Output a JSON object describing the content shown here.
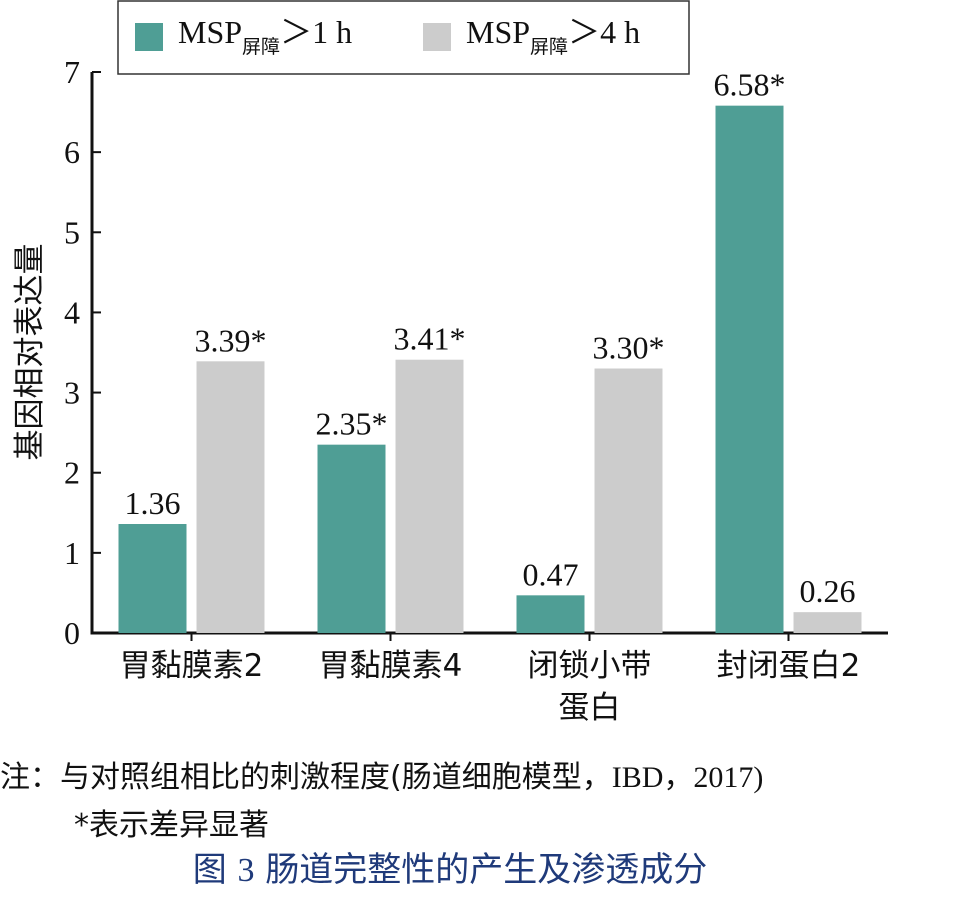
{
  "chart_data": {
    "type": "bar",
    "ylabel": "基因相对表达量",
    "ylim": [
      0,
      7
    ],
    "yticks": [
      0,
      1,
      2,
      3,
      4,
      5,
      6,
      7
    ],
    "categories": [
      {
        "lines": [
          "胃黏膜素2"
        ]
      },
      {
        "lines": [
          "胃黏膜素4"
        ]
      },
      {
        "lines": [
          "闭锁小带",
          "蛋白"
        ]
      },
      {
        "lines": [
          "封闭蛋白2"
        ]
      }
    ],
    "series": [
      {
        "name_main": "MSP",
        "name_sub": "屏障",
        "name_rest": "＞1 h",
        "color": "#4f9e95",
        "values": [
          1.36,
          2.35,
          0.47,
          6.58
        ],
        "labels": [
          "1.36",
          "2.35*",
          "0.47",
          "6.58*"
        ]
      },
      {
        "name_main": "MSP",
        "name_sub": "屏障",
        "name_rest": "＞4 h",
        "color": "#cccccc",
        "values": [
          3.39,
          3.41,
          3.3,
          0.26
        ],
        "labels": [
          "3.39*",
          "3.41*",
          "3.30*",
          "0.26"
        ]
      }
    ],
    "legend_position": "top",
    "grid": false
  },
  "notes": {
    "line1_prefix": "注：与对照组相比的刺激程度(肠道细胞模型，",
    "line1_ibd": "IBD",
    "line1_comma": "，",
    "line1_year": "2017",
    "line1_close": ")",
    "line2": "*表示差异显著"
  },
  "caption": {
    "fig": "图",
    "num": "3",
    "title": "肠道完整性的产生及渗透成分"
  }
}
